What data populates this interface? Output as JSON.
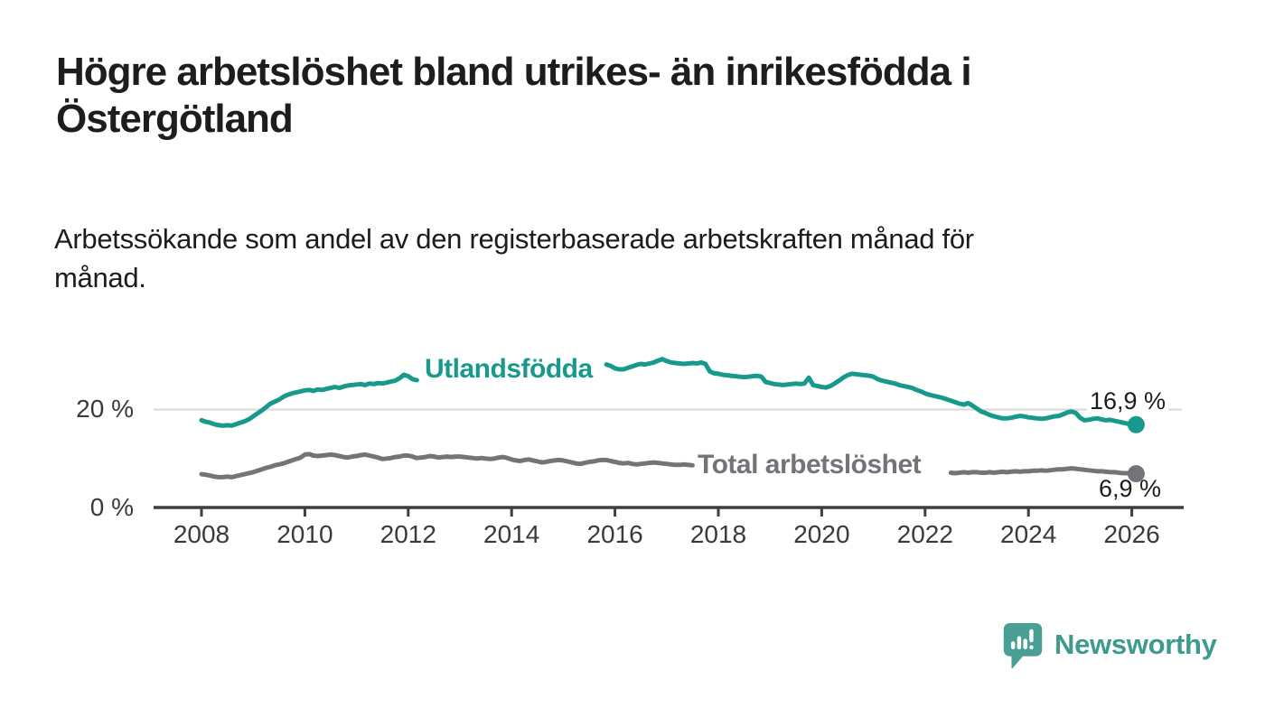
{
  "title": {
    "lines": [
      "Högre arbetslöshet bland utrikes- än inrikesfödda i",
      "Östergötland"
    ]
  },
  "subtitle": {
    "lines": [
      "Arbetssökande som andel av den registerbaserade arbetskraften månad för",
      "månad."
    ]
  },
  "chart_data": {
    "type": "line",
    "unit": "%",
    "frequency": "monthly",
    "start": "2008-01",
    "end": "2026-02",
    "ylim": [
      0,
      32
    ],
    "gridlines_y": [
      20
    ],
    "legend_position": "inline-labels",
    "y_ticks": [
      {
        "value": 0,
        "label": "0 %"
      },
      {
        "value": 20,
        "label": "20 %"
      }
    ],
    "x_ticks": [
      "2008",
      "2010",
      "2012",
      "2014",
      "2016",
      "2018",
      "2020",
      "2022",
      "2024",
      "2026"
    ],
    "series": [
      {
        "name": "Utlandsfödda",
        "color": "#17998c",
        "end_label": "16,9 %",
        "last_value": 16.9,
        "label_gap_months": [
          51,
          93
        ],
        "values": [
          17.8,
          17.5,
          17.3,
          17.0,
          16.8,
          16.7,
          16.8,
          16.7,
          17.0,
          17.3,
          17.6,
          18.0,
          18.6,
          19.2,
          19.8,
          20.5,
          21.2,
          21.6,
          22.0,
          22.6,
          23.0,
          23.3,
          23.5,
          23.7,
          23.9,
          24.0,
          23.8,
          24.1,
          24.0,
          24.2,
          24.4,
          24.6,
          24.4,
          24.7,
          24.9,
          25.0,
          25.1,
          25.2,
          25.0,
          25.3,
          25.2,
          25.4,
          25.3,
          25.5,
          25.7,
          25.9,
          26.4,
          27.1,
          26.8,
          26.2,
          26.0,
          26.3,
          26.1,
          26.4,
          26.6,
          26.5,
          26.7,
          26.9,
          26.8,
          27.0,
          27.1,
          27.3,
          27.2,
          27.4,
          27.5,
          27.6,
          27.8,
          27.7,
          27.9,
          28.0,
          28.1,
          28.0,
          28.2,
          28.3,
          28.2,
          28.4,
          28.5,
          28.4,
          28.6,
          28.7,
          28.6,
          28.8,
          28.9,
          28.8,
          29.0,
          29.1,
          29.0,
          29.2,
          29.1,
          29.0,
          29.2,
          29.3,
          29.2,
          29.1,
          29.2,
          28.9,
          28.4,
          28.2,
          28.2,
          28.5,
          28.8,
          29.1,
          29.3,
          29.2,
          29.4,
          29.6,
          30.0,
          30.3,
          29.9,
          29.6,
          29.5,
          29.4,
          29.3,
          29.4,
          29.5,
          29.4,
          29.6,
          29.3,
          27.8,
          27.4,
          27.3,
          27.1,
          27.0,
          26.9,
          26.8,
          26.7,
          26.6,
          26.7,
          26.8,
          26.9,
          26.7,
          25.6,
          25.4,
          25.2,
          25.1,
          25.0,
          25.1,
          25.2,
          25.3,
          25.2,
          25.3,
          26.5,
          25.0,
          24.8,
          24.6,
          24.5,
          24.8,
          25.3,
          25.9,
          26.5,
          27.0,
          27.3,
          27.2,
          27.1,
          27.0,
          26.9,
          26.7,
          26.2,
          25.9,
          25.7,
          25.5,
          25.3,
          25.0,
          24.8,
          24.6,
          24.4,
          24.0,
          23.7,
          23.3,
          23.0,
          22.8,
          22.6,
          22.4,
          22.1,
          21.8,
          21.5,
          21.2,
          21.0,
          21.3,
          20.8,
          20.2,
          19.6,
          19.3,
          18.9,
          18.6,
          18.4,
          18.2,
          18.2,
          18.3,
          18.5,
          18.7,
          18.6,
          18.4,
          18.3,
          18.2,
          18.1,
          18.2,
          18.4,
          18.6,
          18.7,
          19.0,
          19.4,
          19.6,
          19.3,
          18.3,
          17.8,
          17.9,
          18.1,
          18.2,
          18.0,
          17.8,
          17.9,
          17.7,
          17.5,
          17.3,
          17.1,
          17.0,
          16.9
        ]
      },
      {
        "name": "Total arbetslöshet",
        "color": "#747379",
        "end_label": "6,9 %",
        "last_value": 6.9,
        "label_gap_months": [
          115,
          173
        ],
        "values": [
          6.8,
          6.7,
          6.5,
          6.3,
          6.2,
          6.2,
          6.3,
          6.2,
          6.4,
          6.6,
          6.8,
          7.0,
          7.2,
          7.5,
          7.8,
          8.1,
          8.3,
          8.6,
          8.8,
          9.0,
          9.3,
          9.6,
          9.9,
          10.2,
          10.8,
          10.9,
          10.6,
          10.5,
          10.6,
          10.7,
          10.8,
          10.7,
          10.5,
          10.3,
          10.2,
          10.4,
          10.5,
          10.7,
          10.8,
          10.6,
          10.4,
          10.2,
          9.9,
          10.0,
          10.1,
          10.3,
          10.4,
          10.6,
          10.6,
          10.4,
          10.1,
          10.2,
          10.3,
          10.5,
          10.4,
          10.2,
          10.3,
          10.4,
          10.3,
          10.4,
          10.4,
          10.3,
          10.2,
          10.1,
          10.0,
          10.1,
          10.0,
          9.9,
          10.0,
          10.2,
          10.3,
          10.1,
          9.8,
          9.6,
          9.5,
          9.7,
          9.8,
          9.6,
          9.4,
          9.2,
          9.3,
          9.5,
          9.6,
          9.7,
          9.6,
          9.4,
          9.2,
          9.0,
          8.9,
          9.1,
          9.3,
          9.4,
          9.6,
          9.7,
          9.7,
          9.5,
          9.3,
          9.1,
          9.0,
          9.1,
          8.9,
          8.8,
          8.9,
          9.0,
          9.1,
          9.2,
          9.1,
          9.0,
          8.9,
          8.8,
          8.7,
          8.7,
          8.8,
          8.7,
          8.6,
          8.5,
          8.4,
          8.3,
          8.2,
          8.1,
          8.0,
          7.9,
          7.8,
          7.7,
          7.6,
          7.5,
          7.4,
          7.4,
          7.3,
          7.2,
          7.2,
          7.1,
          7.0,
          7.0,
          6.9,
          6.9,
          6.8,
          6.9,
          7.0,
          7.0,
          7.1,
          7.2,
          7.3,
          7.4,
          7.5,
          7.6,
          8.0,
          8.7,
          9.2,
          9.5,
          9.6,
          9.5,
          9.4,
          9.2,
          9.0,
          8.9,
          8.8,
          8.7,
          8.5,
          8.3,
          8.1,
          7.9,
          7.7,
          7.6,
          7.5,
          7.4,
          7.3,
          7.2,
          7.2,
          7.1,
          7.0,
          7.0,
          6.9,
          7.0,
          7.1,
          7.0,
          7.1,
          7.2,
          7.1,
          7.2,
          7.2,
          7.1,
          7.1,
          7.2,
          7.1,
          7.2,
          7.3,
          7.2,
          7.3,
          7.4,
          7.3,
          7.4,
          7.4,
          7.5,
          7.5,
          7.6,
          7.5,
          7.6,
          7.7,
          7.8,
          7.8,
          7.9,
          8.0,
          7.9,
          7.8,
          7.7,
          7.6,
          7.5,
          7.4,
          7.4,
          7.3,
          7.2,
          7.2,
          7.1,
          7.0,
          7.0,
          6.9,
          6.9
        ]
      }
    ]
  },
  "branding": {
    "logo_text": "Newsworthy",
    "bubble_color": "#4a9f94",
    "text_color": "#3f9a8e"
  },
  "theme": {
    "background": "#ffffff",
    "text": "#1d1d1b",
    "axis": "#3f3f3f",
    "gridline": "#d9d9d9"
  }
}
